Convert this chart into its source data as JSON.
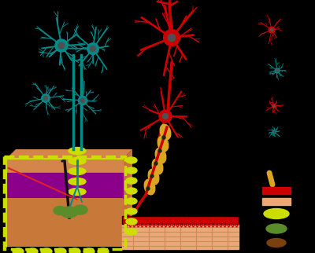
{
  "bg_color": "#000000",
  "teal": "#008B8B",
  "red": "#CC0000",
  "yg": "#CCDD00",
  "dgray": "#505050",
  "skin_top": "#D4854A",
  "skin_mid": "#C87040",
  "purple": "#8B008B",
  "skin_lower": "#C87838",
  "muscle_color": "#E8A878",
  "muscle_line": "#D08858",
  "gold": "#DAA520",
  "green_follicle": "#5A8C2A",
  "brown": "#7B4010",
  "figsize": [
    4.0,
    3.22
  ],
  "dpi": 100
}
